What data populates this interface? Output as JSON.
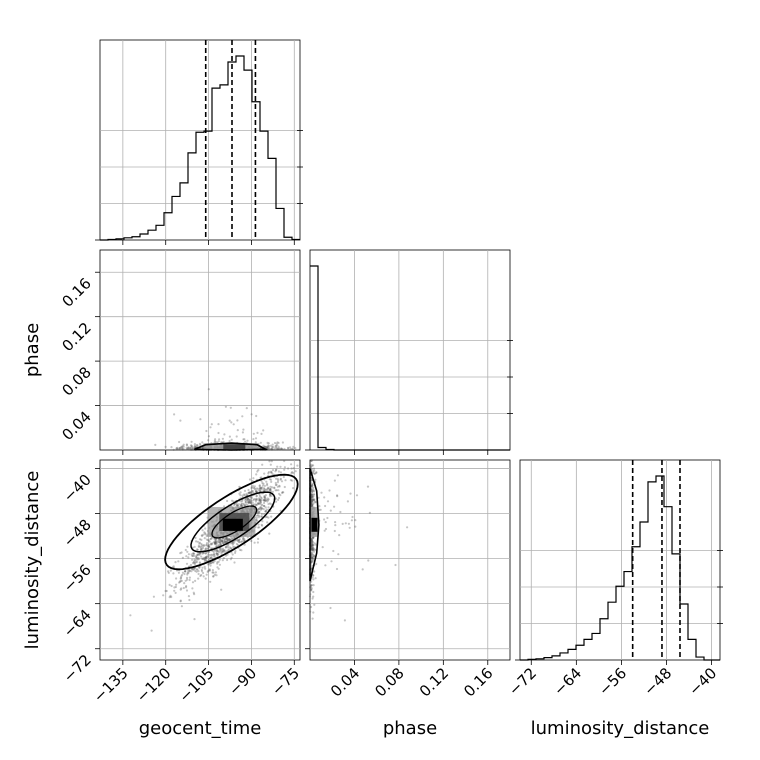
{
  "chart_data": {
    "type": "corner",
    "grid": true,
    "parameters": [
      "geocent_time",
      "phase",
      "luminosity_distance"
    ],
    "axis_labels": {
      "x": [
        "geocent_time",
        "phase",
        "luminosity_distance"
      ],
      "y": [
        "",
        "phase",
        "luminosity_distance"
      ]
    },
    "ranges": {
      "geocent_time": [
        -143,
        -73
      ],
      "phase": [
        0.0,
        0.18
      ],
      "luminosity_distance": [
        -74,
        -38.5
      ]
    },
    "ticks": {
      "geocent_time": {
        "values": [
          -135,
          -120,
          -105,
          -90,
          -75
        ],
        "labels": [
          "−135",
          "−120",
          "−105",
          "−90",
          "−75"
        ]
      },
      "phase": {
        "values": [
          0.04,
          0.08,
          0.12,
          0.16
        ],
        "labels": [
          "0.04",
          "0.08",
          "0.12",
          "0.16"
        ]
      },
      "luminosity_distance": {
        "values": [
          -72,
          -64,
          -56,
          -48,
          -40
        ],
        "labels": [
          "−72",
          "−64",
          "−56",
          "−48",
          "−40"
        ]
      }
    },
    "histograms": {
      "geocent_time": {
        "bin_edges": [
          -143,
          -140.2,
          -137.4,
          -134.6,
          -131.8,
          -129,
          -126.2,
          -123.4,
          -120.6,
          -117.8,
          -115,
          -112.2,
          -109.4,
          -106.6,
          -103.8,
          -101,
          -98.2,
          -95.4,
          -92.6,
          -89.8,
          -87,
          -84.2,
          -81.4,
          -78.6,
          -75.8,
          -73
        ],
        "counts": [
          0,
          1,
          2,
          4,
          6,
          11,
          18,
          27,
          50,
          80,
          105,
          160,
          198,
          200,
          279,
          285,
          327,
          338,
          312,
          254,
          200,
          150,
          58,
          5,
          1
        ],
        "quantiles": [
          -106.0,
          -96.8,
          -88.6
        ]
      },
      "phase": {
        "bin_edges": [
          0.0,
          0.0072,
          0.0144,
          0.0216,
          0.0288,
          0.036,
          0.0432,
          0.0504,
          0.0576,
          0.0648,
          0.072,
          0.0792,
          0.0864,
          0.0936,
          0.1008,
          0.108,
          0.1152,
          0.1224,
          0.1296,
          0.1368,
          0.144,
          0.1512,
          0.1584,
          0.1656,
          0.1728,
          0.18
        ],
        "counts": [
          372,
          5,
          1,
          0,
          0,
          0,
          0,
          0,
          0,
          0,
          0,
          0,
          0,
          0,
          0,
          0,
          0,
          0,
          0,
          0,
          0,
          0,
          0,
          0,
          0
        ]
      },
      "luminosity_distance": {
        "bin_edges": [
          -74,
          -72.58,
          -71.16,
          -69.74,
          -68.32,
          -66.9,
          -65.48,
          -64.06,
          -62.64,
          -61.22,
          -59.8,
          -58.38,
          -56.96,
          -55.54,
          -54.12,
          -52.7,
          -51.28,
          -49.86,
          -48.44,
          -47.02,
          -45.6,
          -44.18,
          -42.76,
          -41.34,
          -39.92,
          -38.5
        ],
        "counts": [
          0,
          1,
          2,
          4,
          7,
          12,
          18,
          25,
          35,
          45,
          70,
          98,
          125,
          150,
          192,
          234,
          302,
          312,
          260,
          180,
          95,
          35,
          5,
          0,
          0
        ],
        "quantiles": [
          -54.0,
          -48.8,
          -45.6
        ]
      }
    },
    "scatter_trend": {
      "geocent_time_vs_luminosity_distance": {
        "slope": 0.47,
        "intercept": -5.0,
        "center": [
          -96.0,
          -49.5
        ]
      },
      "geocent_time_vs_phase": {
        "center": [
          -97.0,
          0.003
        ]
      },
      "phase_vs_luminosity_distance": {
        "center": [
          0.002,
          -50.0
        ]
      }
    }
  }
}
